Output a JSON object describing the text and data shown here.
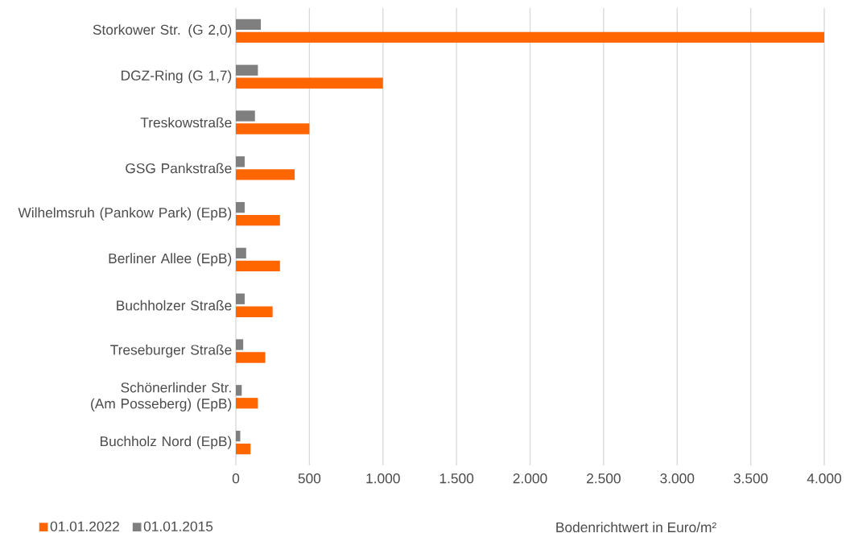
{
  "chart_data": {
    "type": "bar",
    "orientation": "horizontal",
    "xlabel": "Bodenrichtwert in Euro/m²",
    "categories": [
      "Storkower Str. (G 2,0)",
      "DGZ-Ring (G 1,7)",
      "Treskowstraße",
      "GSG Pankstraße",
      "Wilhelmsruh (Pankow Park) (EpB)",
      "Berliner Allee (EpB)",
      "Buchholzer Straße",
      "Treseburger Straße",
      "Schönerlinder Str. (Am Posseberg) (EpB)",
      "Buchholz Nord (EpB)"
    ],
    "series": [
      {
        "name": "01.01.2022",
        "color": "#ff6600",
        "values": [
          4000,
          1000,
          500,
          400,
          300,
          300,
          250,
          200,
          150,
          100
        ]
      },
      {
        "name": "01.01.2015",
        "color": "#7f7f7f",
        "values": [
          170,
          150,
          130,
          60,
          60,
          70,
          60,
          50,
          40,
          30
        ]
      }
    ],
    "xlim": [
      0,
      4000
    ],
    "xticks": [
      0,
      500,
      {
        "value": 1000,
        "label": "1.000"
      },
      {
        "value": 1500,
        "label": "1.500"
      },
      {
        "value": 2000,
        "label": "2.000"
      },
      {
        "value": 2500,
        "label": "2.500"
      },
      {
        "value": 3000,
        "label": "3.000"
      },
      {
        "value": 3500,
        "label": "3.500"
      },
      {
        "value": 4000,
        "label": "4.000"
      }
    ],
    "grid": "x",
    "legend": "bottom left"
  }
}
